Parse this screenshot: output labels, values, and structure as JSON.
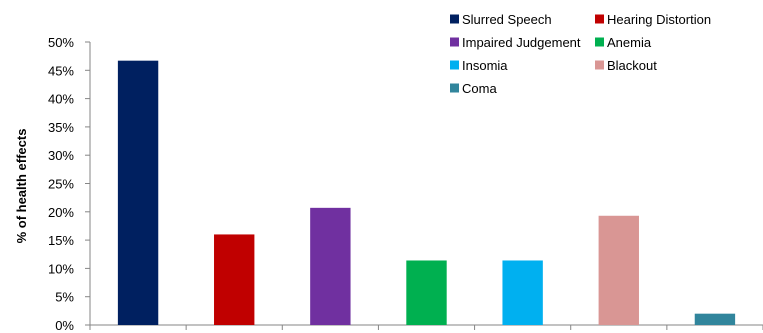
{
  "chart_data": {
    "type": "bar",
    "title": "",
    "xlabel": "",
    "ylabel": "% of health effects",
    "ylim": [
      0,
      0.5
    ],
    "y_ticks": [
      "0%",
      "5%",
      "10%",
      "15%",
      "20%",
      "25%",
      "30%",
      "35%",
      "40%",
      "45%",
      "50%"
    ],
    "grid": false,
    "legend_position": "top-right",
    "series": [
      {
        "name": "Slurred Speech",
        "value": 0.467,
        "color": "#002060"
      },
      {
        "name": "Hearing Distortion",
        "value": 0.16,
        "color": "#C00000"
      },
      {
        "name": "Impaired Judgement",
        "value": 0.207,
        "color": "#7030A0"
      },
      {
        "name": "Anemia",
        "value": 0.114,
        "color": "#00B050"
      },
      {
        "name": "Insomia",
        "value": 0.114,
        "color": "#00B0F0"
      },
      {
        "name": "Blackout",
        "value": 0.193,
        "color": "#D99694"
      },
      {
        "name": "Coma",
        "value": 0.02,
        "color": "#31859C"
      }
    ]
  }
}
